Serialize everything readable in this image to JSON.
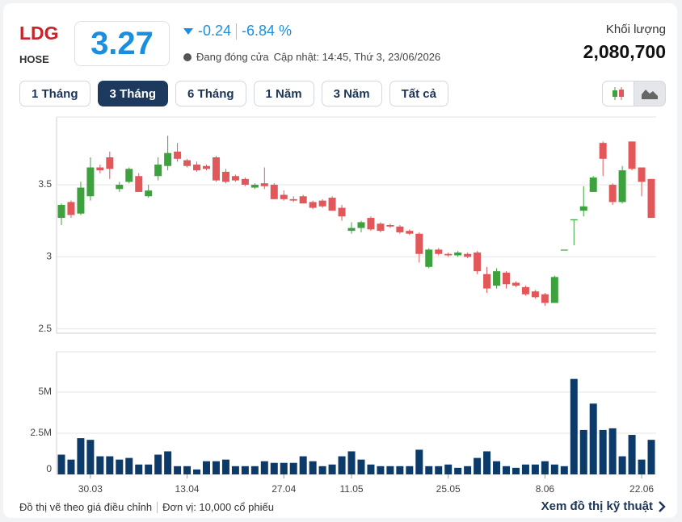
{
  "header": {
    "symbol": "LDG",
    "exchange": "HOSE",
    "price": "3.27",
    "change": "-0.24",
    "change_pct": "-6.84 %",
    "status": "Đang đóng cửa",
    "updated": "Cập nhật: 14:45, Thứ 3, 23/06/2026",
    "volume_label": "Khối lượng",
    "volume": "2,080,700"
  },
  "range_buttons": {
    "items": [
      "1 Tháng",
      "3 Tháng",
      "6 Tháng",
      "1 Năm",
      "3 Năm",
      "Tất cả"
    ],
    "active": 1
  },
  "footer": {
    "note": "Đồ thị vẽ theo giá điều chỉnh",
    "unit": "Đơn vị: 10,000 cổ phiếu",
    "link": "Xem đồ thị kỹ thuật"
  },
  "chart_data": [
    {
      "type": "candlestick",
      "up_color": "#3da23d",
      "down_color": "#e2575a",
      "grid": true,
      "ylim": [
        2.47,
        3.97
      ],
      "yticks": [
        2.5,
        3,
        3.5
      ],
      "open": [
        3.27,
        3.38,
        3.3,
        3.42,
        3.62,
        3.69,
        3.47,
        3.52,
        3.56,
        3.42,
        3.56,
        3.63,
        3.73,
        3.67,
        3.64,
        3.63,
        3.69,
        3.59,
        3.56,
        3.54,
        3.48,
        3.51,
        3.5,
        3.43,
        3.4,
        3.42,
        3.38,
        3.39,
        3.41,
        3.34,
        3.18,
        3.2,
        3.27,
        3.23,
        3.22,
        3.21,
        3.18,
        3.16,
        2.93,
        3.05,
        3.02,
        3.01,
        3.02,
        3.03,
        2.88,
        2.8,
        2.89,
        2.82,
        2.79,
        2.76,
        2.74,
        2.68,
        3.05,
        3.26,
        3.32,
        3.45,
        3.79,
        3.5,
        3.38,
        3.8,
        3.62,
        3.54
      ],
      "high": [
        3.37,
        3.39,
        3.52,
        3.69,
        3.64,
        3.73,
        3.52,
        3.62,
        3.58,
        3.5,
        3.69,
        3.84,
        3.79,
        3.68,
        3.66,
        3.64,
        3.7,
        3.61,
        3.57,
        3.55,
        3.51,
        3.62,
        3.51,
        3.46,
        3.42,
        3.43,
        3.39,
        3.4,
        3.42,
        3.36,
        3.24,
        3.25,
        3.28,
        3.24,
        3.23,
        3.22,
        3.19,
        3.17,
        3.06,
        3.06,
        3.03,
        3.04,
        3.03,
        3.04,
        2.93,
        2.92,
        2.9,
        2.83,
        2.8,
        2.77,
        2.75,
        2.87,
        3.05,
        3.26,
        3.49,
        3.56,
        3.8,
        3.51,
        3.63,
        3.8,
        3.62,
        3.54
      ],
      "low": [
        3.22,
        3.27,
        3.29,
        3.39,
        3.58,
        3.54,
        3.45,
        3.51,
        3.45,
        3.41,
        3.53,
        3.6,
        3.66,
        3.62,
        3.59,
        3.6,
        3.52,
        3.51,
        3.52,
        3.49,
        3.47,
        3.47,
        3.4,
        3.39,
        3.38,
        3.37,
        3.33,
        3.34,
        3.32,
        3.25,
        3.16,
        3.17,
        3.18,
        3.17,
        3.2,
        3.16,
        3.15,
        2.96,
        2.92,
        3.01,
        3.0,
        3.0,
        2.99,
        2.88,
        2.75,
        2.78,
        2.78,
        2.79,
        2.73,
        2.71,
        2.66,
        2.68,
        3.05,
        3.08,
        3.28,
        3.45,
        3.56,
        3.36,
        3.37,
        3.6,
        3.42,
        3.27
      ],
      "close": [
        3.36,
        3.29,
        3.48,
        3.62,
        3.6,
        3.61,
        3.5,
        3.61,
        3.45,
        3.46,
        3.64,
        3.72,
        3.68,
        3.63,
        3.6,
        3.61,
        3.53,
        3.52,
        3.53,
        3.5,
        3.5,
        3.49,
        3.4,
        3.4,
        3.39,
        3.37,
        3.34,
        3.35,
        3.32,
        3.28,
        3.2,
        3.24,
        3.19,
        3.18,
        3.21,
        3.17,
        3.16,
        3.02,
        3.05,
        3.02,
        3.01,
        3.03,
        3.0,
        2.9,
        2.78,
        2.9,
        2.81,
        2.8,
        2.74,
        2.72,
        2.68,
        2.86,
        3.05,
        3.26,
        3.35,
        3.55,
        3.68,
        3.38,
        3.6,
        3.61,
        3.52,
        3.27
      ]
    },
    {
      "type": "bar",
      "color": "#0d3b69",
      "grid": true,
      "categories": [
        null,
        null,
        null,
        "30.03",
        null,
        null,
        null,
        null,
        null,
        null,
        null,
        null,
        null,
        "13.04",
        null,
        null,
        null,
        null,
        null,
        null,
        null,
        null,
        null,
        "27.04",
        null,
        null,
        null,
        null,
        null,
        null,
        "11.05",
        null,
        null,
        null,
        null,
        null,
        null,
        null,
        null,
        null,
        "25.05",
        null,
        null,
        null,
        null,
        null,
        null,
        null,
        null,
        null,
        "8.06",
        null,
        null,
        null,
        null,
        null,
        null,
        null,
        null,
        null,
        "22.06",
        null
      ],
      "ylim": [
        0,
        7450000
      ],
      "yticks": [
        0,
        {
          "value": 2500000,
          "label": "2.5M"
        },
        {
          "value": 5000000,
          "label": "5M"
        }
      ],
      "values": [
        1200000,
        900000,
        2200000,
        2100000,
        1100000,
        1100000,
        900000,
        1000000,
        600000,
        600000,
        1200000,
        1400000,
        500000,
        500000,
        300000,
        800000,
        800000,
        900000,
        500000,
        500000,
        500000,
        800000,
        700000,
        700000,
        700000,
        1100000,
        800000,
        500000,
        600000,
        1100000,
        1400000,
        900000,
        600000,
        500000,
        500000,
        500000,
        500000,
        1500000,
        500000,
        500000,
        600000,
        400000,
        500000,
        1000000,
        1400000,
        800000,
        500000,
        400000,
        600000,
        600000,
        800000,
        600000,
        500000,
        5800000,
        2700000,
        4300000,
        2700000,
        2800000,
        1100000,
        2400000,
        900000,
        2100000
      ]
    }
  ]
}
